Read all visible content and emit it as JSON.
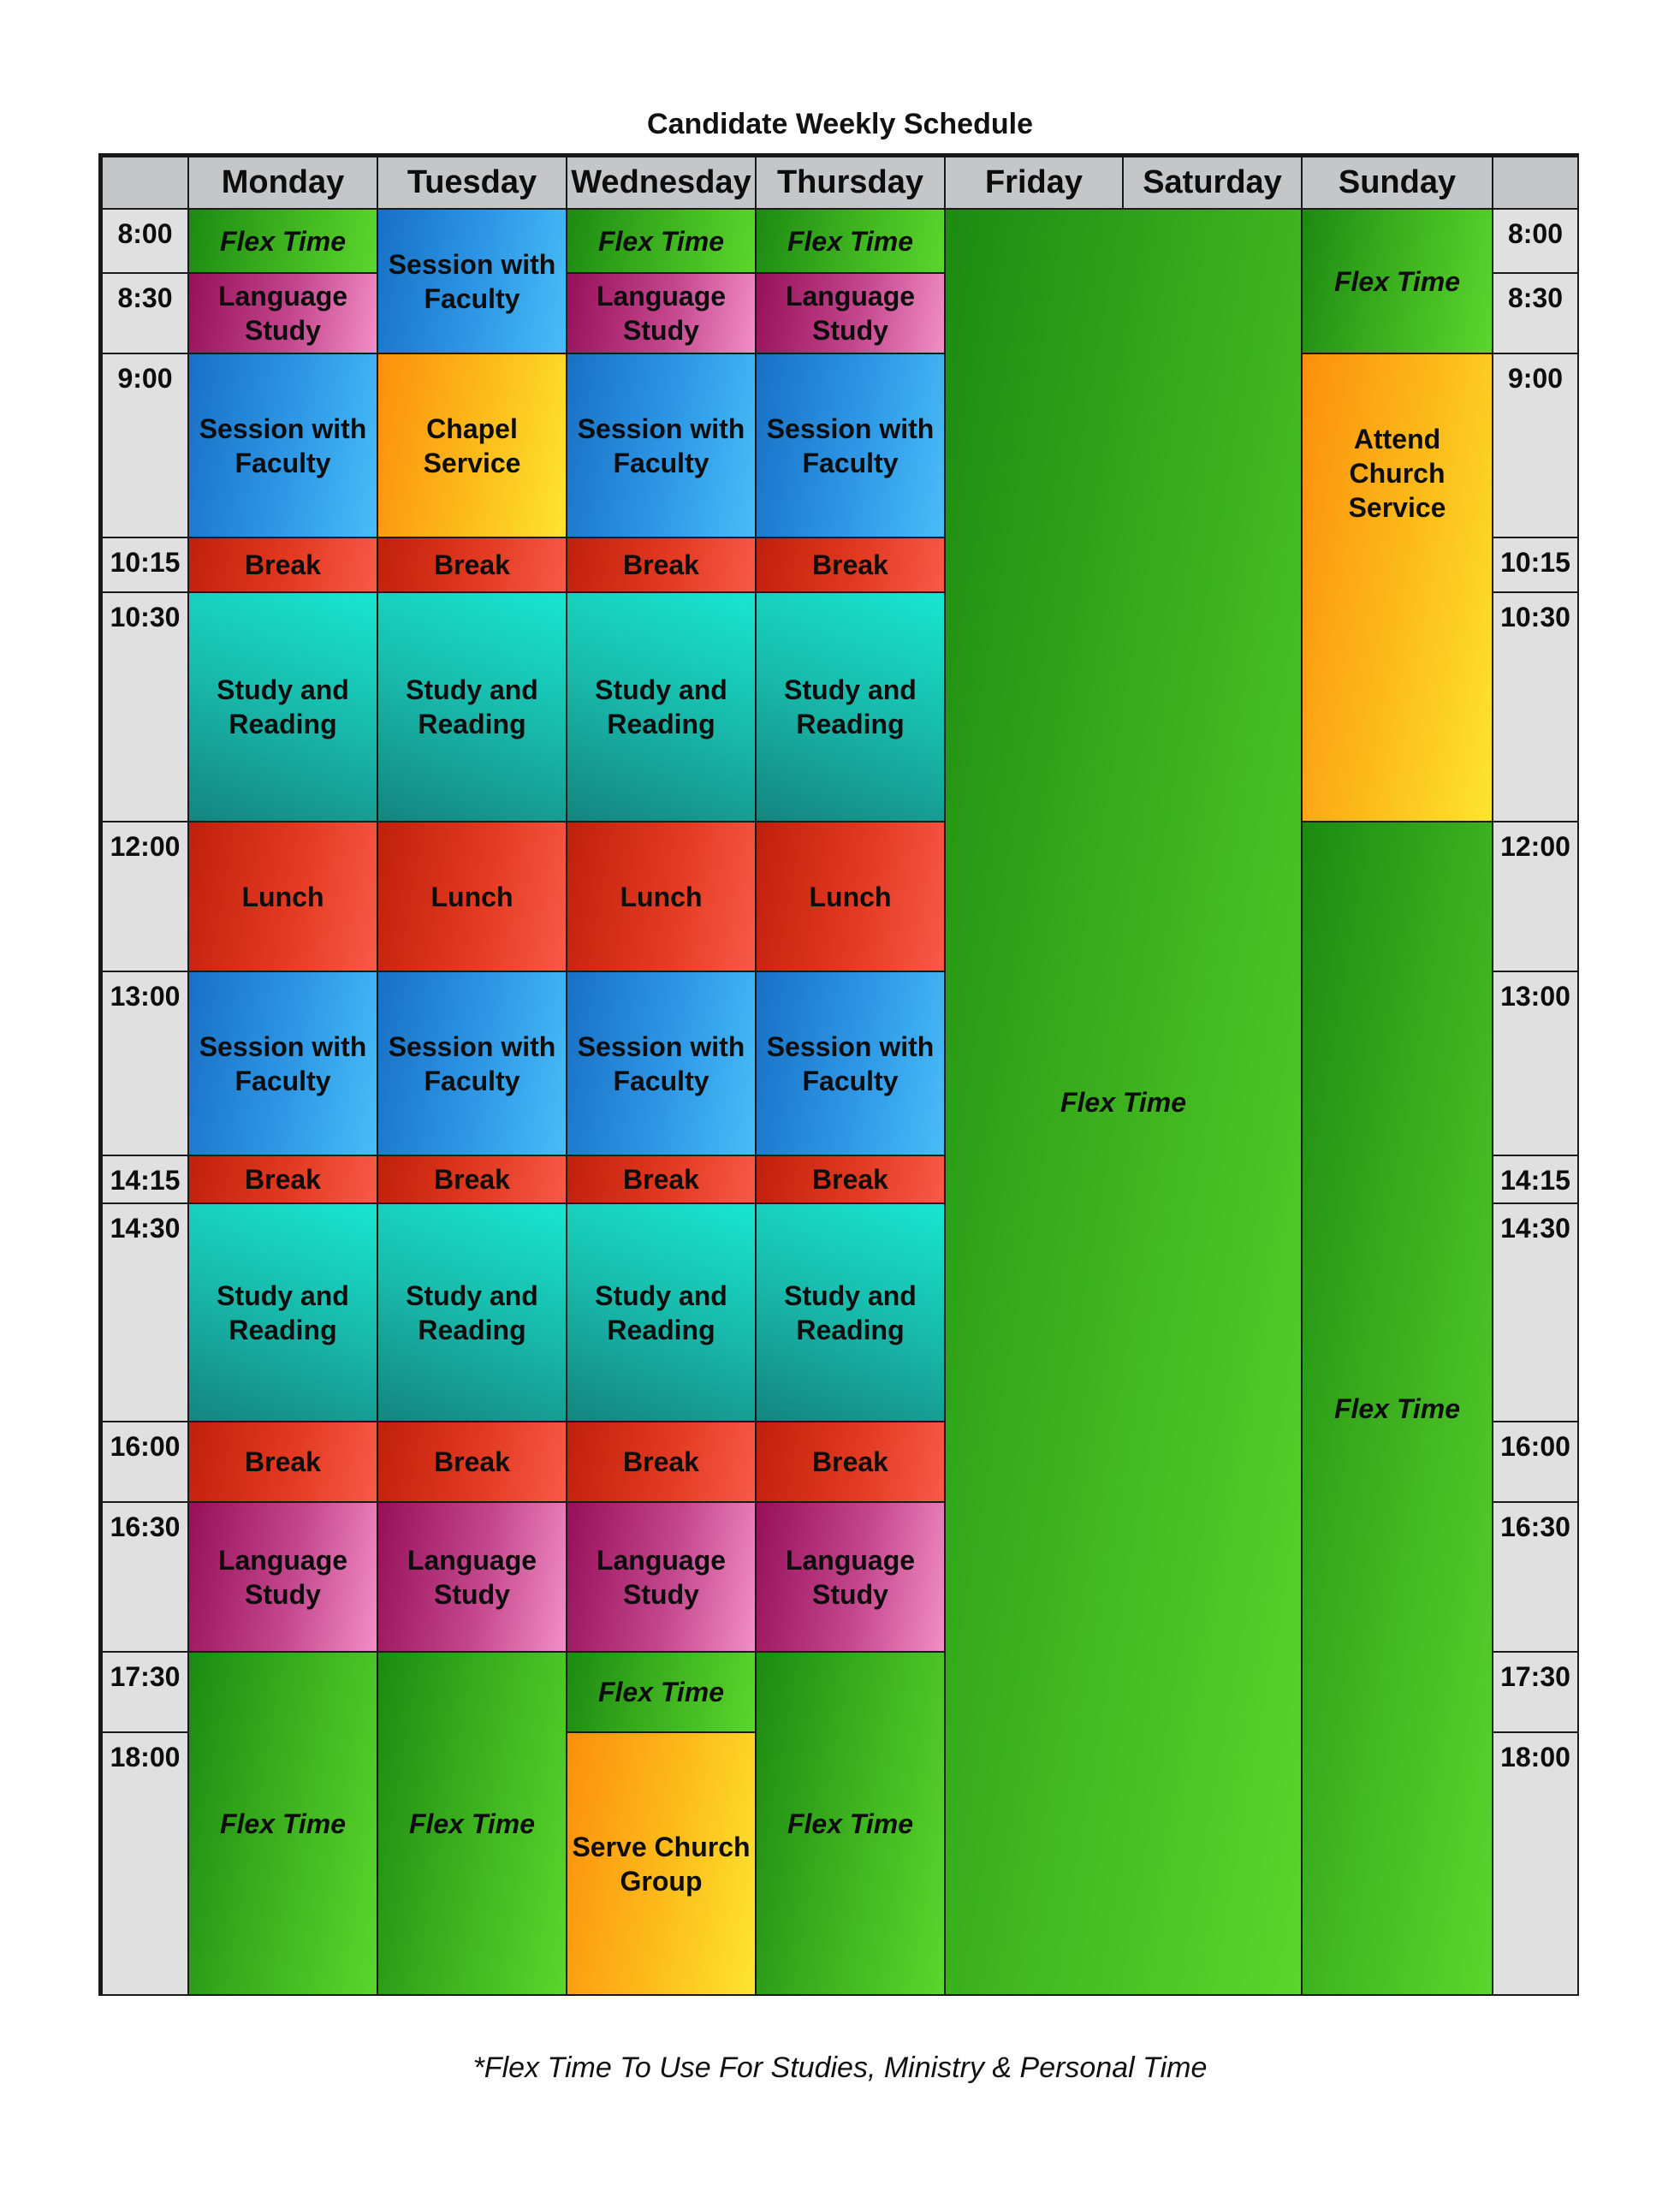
{
  "title": "Candidate Weekly Schedule",
  "footnote": "*Flex Time To Use For Studies, Ministry & Personal Time",
  "days": [
    "Monday",
    "Tuesday",
    "Wednesday",
    "Thursday",
    "Friday",
    "Saturday",
    "Sunday"
  ],
  "times": [
    "8:00",
    "8:30",
    "9:00",
    "10:15",
    "10:30",
    "12:00",
    "13:00",
    "14:15",
    "14:30",
    "16:00",
    "16:30",
    "17:30",
    "18:00"
  ],
  "activities": {
    "flex": "Flex Time",
    "language": "Language Study",
    "session": "Session with Faculty",
    "chapel": "Chapel Service",
    "break": "Break",
    "study": "Study and Reading",
    "lunch": "Lunch",
    "serve": "Serve Church Group",
    "church": "Attend Church Service"
  },
  "schedule": {
    "monday": [
      "flex",
      "language",
      "session",
      "break",
      "study",
      "lunch",
      "session",
      "break",
      "study",
      "break",
      "language",
      "flex"
    ],
    "tuesday": [
      "session",
      "chapel",
      "break",
      "study",
      "lunch",
      "session",
      "break",
      "study",
      "break",
      "language",
      "flex"
    ],
    "wednesday": [
      "flex",
      "language",
      "session",
      "break",
      "study",
      "lunch",
      "session",
      "break",
      "study",
      "break",
      "language",
      "flex",
      "serve"
    ],
    "thursday": [
      "flex",
      "language",
      "session",
      "break",
      "study",
      "lunch",
      "session",
      "break",
      "study",
      "break",
      "language",
      "flex"
    ],
    "friday_saturday": [
      "flex"
    ],
    "sunday": [
      "flex",
      "church",
      "flex"
    ]
  },
  "colors": {
    "flex": "#3aae1e",
    "language": "#c4478d",
    "session": "#2f98e6",
    "chapel": "#fcbd1b",
    "break": "#e33a22",
    "study": "#18b9aa",
    "header": "#c4c6c7",
    "time_column": "#e0e0e0"
  }
}
